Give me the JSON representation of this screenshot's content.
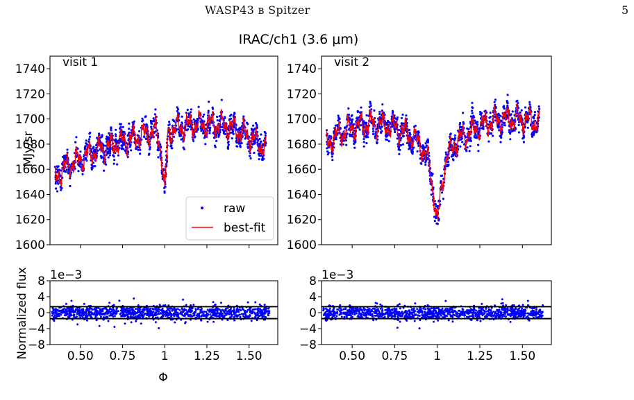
{
  "header": {
    "running_head": "WASP43 в Spitzer",
    "page_number": "5"
  },
  "figure": {
    "title": "IRAC/ch1 (3.6 μm)",
    "ylabel_top": "MJy/sr",
    "ylabel_bottom": "Normalized flux",
    "xlabel": "Φ",
    "offset_text": "1e−3",
    "legend": [
      {
        "label": "raw",
        "color": "#0000ff",
        "style": "point"
      },
      {
        "label": "best-fit",
        "color": "#ff0000",
        "style": "line"
      }
    ],
    "colors": {
      "raw": "#0000ff",
      "fit": "#ff0000",
      "residual": "#0000ff",
      "band": "#000000"
    }
  },
  "chart_data": [
    {
      "type": "scatter",
      "panel": "visit 1 light curve",
      "label": "visit 1",
      "xlim": [
        0.32,
        1.67
      ],
      "ylim": [
        1600,
        1750
      ],
      "x_ticks": [
        0.5,
        0.75,
        1.0,
        1.25,
        1.5
      ],
      "y_ticks": [
        1600,
        1620,
        1640,
        1660,
        1680,
        1700,
        1720,
        1740
      ],
      "series": [
        {
          "name": "raw",
          "x": [
            0.35,
            0.4,
            0.45,
            0.5,
            0.55,
            0.6,
            0.65,
            0.7,
            0.75,
            0.8,
            0.85,
            0.9,
            0.95,
            0.98,
            1.0,
            1.02,
            1.05,
            1.1,
            1.15,
            1.2,
            1.25,
            1.3,
            1.35,
            1.4,
            1.45,
            1.5,
            1.55,
            1.6
          ],
          "values": [
            1652,
            1660,
            1665,
            1668,
            1672,
            1675,
            1677,
            1680,
            1682,
            1684,
            1686,
            1689,
            1690,
            1675,
            1640,
            1688,
            1692,
            1694,
            1695,
            1696,
            1696,
            1696,
            1695,
            1693,
            1690,
            1686,
            1682,
            1676
          ]
        },
        {
          "name": "best-fit",
          "x": [
            0.35,
            0.4,
            0.45,
            0.5,
            0.55,
            0.6,
            0.65,
            0.7,
            0.75,
            0.8,
            0.85,
            0.9,
            0.95,
            0.98,
            1.0,
            1.02,
            1.05,
            1.1,
            1.15,
            1.2,
            1.25,
            1.3,
            1.35,
            1.4,
            1.45,
            1.5,
            1.55,
            1.6
          ],
          "values": [
            1652,
            1660,
            1665,
            1668,
            1672,
            1675,
            1677,
            1680,
            1682,
            1684,
            1686,
            1689,
            1690,
            1675,
            1640,
            1688,
            1692,
            1694,
            1695,
            1696,
            1696,
            1696,
            1695,
            1693,
            1690,
            1686,
            1682,
            1676
          ]
        }
      ]
    },
    {
      "type": "scatter",
      "panel": "visit 2 light curve",
      "label": "visit 2",
      "xlim": [
        0.32,
        1.67
      ],
      "ylim": [
        1600,
        1750
      ],
      "x_ticks": [
        0.5,
        0.75,
        1.0,
        1.25,
        1.5
      ],
      "y_ticks": [
        1600,
        1620,
        1640,
        1660,
        1680,
        1700,
        1720,
        1740
      ],
      "series": [
        {
          "name": "raw",
          "x": [
            0.35,
            0.4,
            0.45,
            0.5,
            0.55,
            0.6,
            0.65,
            0.7,
            0.75,
            0.8,
            0.85,
            0.9,
            0.95,
            0.98,
            1.0,
            1.02,
            1.05,
            1.1,
            1.15,
            1.2,
            1.25,
            1.3,
            1.35,
            1.4,
            1.45,
            1.5,
            1.55,
            1.6
          ],
          "values": [
            1680,
            1686,
            1690,
            1693,
            1695,
            1696,
            1696,
            1695,
            1693,
            1690,
            1686,
            1680,
            1665,
            1640,
            1615,
            1640,
            1668,
            1680,
            1686,
            1690,
            1694,
            1697,
            1699,
            1700,
            1700,
            1700,
            1699,
            1697
          ]
        },
        {
          "name": "best-fit",
          "x": [
            0.35,
            0.4,
            0.45,
            0.5,
            0.55,
            0.6,
            0.65,
            0.7,
            0.75,
            0.8,
            0.85,
            0.9,
            0.95,
            0.98,
            1.0,
            1.02,
            1.05,
            1.1,
            1.15,
            1.2,
            1.25,
            1.3,
            1.35,
            1.4,
            1.45,
            1.5,
            1.55,
            1.6
          ],
          "values": [
            1680,
            1686,
            1690,
            1693,
            1695,
            1696,
            1696,
            1695,
            1693,
            1690,
            1686,
            1680,
            1665,
            1640,
            1615,
            1640,
            1668,
            1680,
            1686,
            1690,
            1694,
            1697,
            1699,
            1700,
            1700,
            1700,
            1699,
            1697
          ]
        }
      ]
    },
    {
      "type": "scatter",
      "panel": "visit 1 residuals",
      "xlabel": "Φ",
      "xlim": [
        0.32,
        1.67
      ],
      "ylim": [
        -8,
        8
      ],
      "y_scale": "1e-3",
      "x_ticks": [
        0.5,
        0.75,
        1.0,
        1.25,
        1.5
      ],
      "y_ticks": [
        -8,
        -4,
        0,
        4,
        8
      ],
      "band": [
        -1.5,
        1.5
      ],
      "series": [
        {
          "name": "residuals",
          "x_range": [
            0.33,
            1.62
          ],
          "spread": 1.6
        }
      ]
    },
    {
      "type": "scatter",
      "panel": "visit 2 residuals",
      "xlim": [
        0.32,
        1.67
      ],
      "ylim": [
        -8,
        8
      ],
      "y_scale": "1e-3",
      "x_ticks": [
        0.5,
        0.75,
        1.0,
        1.25,
        1.5
      ],
      "y_ticks": [
        -8,
        -4,
        0,
        4,
        8
      ],
      "band": [
        -1.5,
        1.5
      ],
      "series": [
        {
          "name": "residuals",
          "x_range": [
            0.33,
            1.62
          ],
          "spread": 1.6
        }
      ]
    }
  ]
}
